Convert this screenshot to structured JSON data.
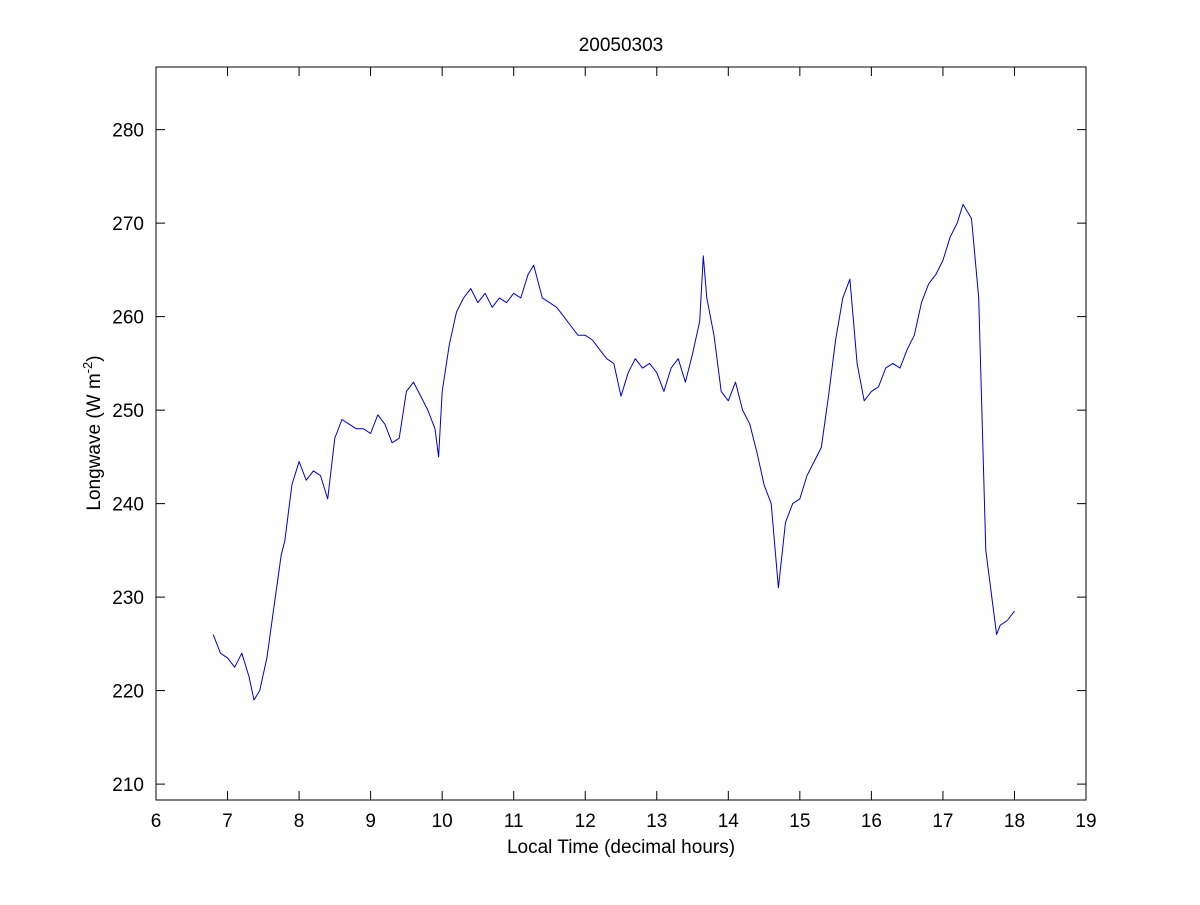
{
  "chart_data": {
    "type": "line",
    "title": "20050303",
    "xlabel": "Local Time (decimal hours)",
    "ylabel": {
      "main": "Longwave (W m",
      "sup": "-2",
      "tail": ")"
    },
    "xlim": [
      6,
      19
    ],
    "ylim": [
      208.3,
      286.7
    ],
    "xticks": [
      6,
      7,
      8,
      9,
      10,
      11,
      12,
      13,
      14,
      15,
      16,
      17,
      18,
      19
    ],
    "yticks": [
      210,
      220,
      230,
      240,
      250,
      260,
      270,
      280
    ],
    "grid": false,
    "line_color": "#0000cc",
    "series": [
      {
        "x": [
          6.8,
          6.9,
          7.0,
          7.1,
          7.2,
          7.3,
          7.37,
          7.45,
          7.55,
          7.65,
          7.75,
          7.8,
          7.9,
          8.0,
          8.1,
          8.2,
          8.3,
          8.4,
          8.5,
          8.6,
          8.7,
          8.8,
          8.9,
          9.0,
          9.1,
          9.2,
          9.3,
          9.4,
          9.5,
          9.6,
          9.7,
          9.8,
          9.9,
          9.95,
          10.0,
          10.1,
          10.2,
          10.3,
          10.4,
          10.5,
          10.6,
          10.7,
          10.8,
          10.9,
          11.0,
          11.1,
          11.2,
          11.28,
          11.4,
          11.5,
          11.6,
          11.7,
          11.8,
          11.9,
          12.0,
          12.1,
          12.2,
          12.3,
          12.4,
          12.5,
          12.6,
          12.7,
          12.8,
          12.9,
          13.0,
          13.1,
          13.2,
          13.3,
          13.4,
          13.5,
          13.6,
          13.65,
          13.7,
          13.8,
          13.9,
          14.0,
          14.1,
          14.2,
          14.3,
          14.4,
          14.5,
          14.6,
          14.7,
          14.8,
          14.9,
          15.0,
          15.1,
          15.2,
          15.3,
          15.4,
          15.5,
          15.6,
          15.7,
          15.8,
          15.9,
          16.0,
          16.1,
          16.2,
          16.3,
          16.4,
          16.5,
          16.6,
          16.7,
          16.8,
          16.9,
          17.0,
          17.1,
          17.2,
          17.28,
          17.4,
          17.5,
          17.6,
          17.7,
          17.75,
          17.8,
          17.9,
          18.0
        ],
        "y": [
          226.0,
          224.0,
          223.5,
          222.5,
          224.0,
          221.5,
          219.0,
          220.0,
          223.5,
          229.0,
          234.5,
          236.0,
          242.0,
          244.5,
          242.5,
          243.5,
          243.0,
          240.5,
          247.0,
          249.0,
          248.5,
          248.0,
          248.0,
          247.5,
          249.5,
          248.5,
          246.5,
          247.0,
          252.0,
          253.0,
          251.5,
          250.0,
          248.0,
          245.0,
          252.0,
          257.0,
          260.5,
          262.0,
          263.0,
          261.5,
          262.5,
          261.0,
          262.0,
          261.5,
          262.5,
          262.0,
          264.5,
          265.5,
          262.0,
          261.5,
          261.0,
          260.0,
          259.0,
          258.0,
          258.0,
          257.5,
          256.5,
          255.5,
          255.0,
          251.5,
          254.0,
          255.5,
          254.5,
          255.0,
          254.0,
          252.0,
          254.5,
          255.5,
          253.0,
          256.0,
          259.5,
          266.5,
          262.0,
          258.0,
          252.0,
          251.0,
          253.0,
          250.0,
          248.5,
          245.5,
          242.0,
          240.0,
          231.0,
          238.0,
          240.0,
          240.5,
          243.0,
          244.5,
          246.0,
          251.5,
          257.5,
          262.0,
          264.0,
          255.0,
          251.0,
          252.0,
          252.5,
          254.5,
          255.0,
          254.5,
          256.5,
          258.0,
          261.5,
          263.5,
          264.5,
          266.0,
          268.5,
          270.0,
          272.0,
          270.5,
          262.0,
          235.0,
          229.0,
          226.0,
          227.0,
          227.5,
          228.5
        ]
      }
    ]
  }
}
